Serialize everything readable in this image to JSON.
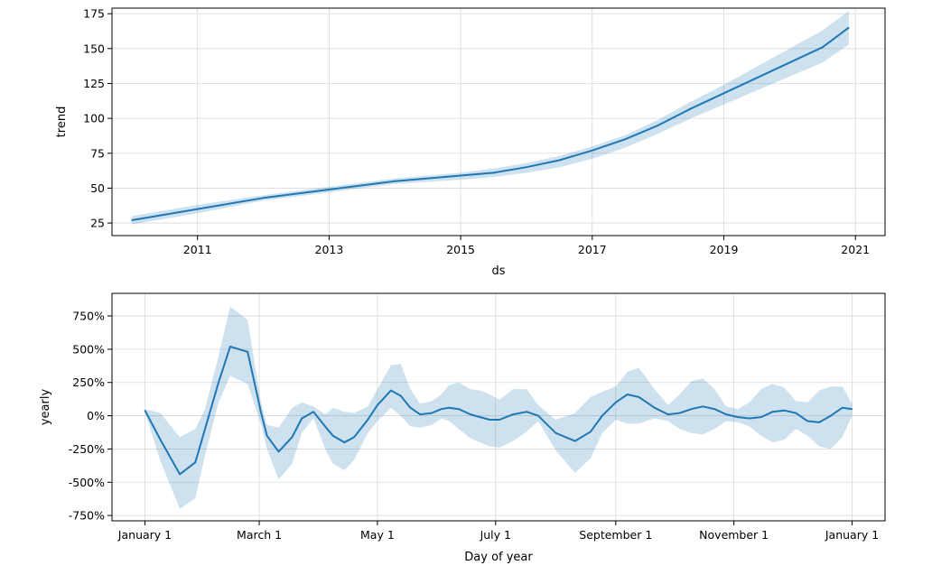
{
  "colors": {
    "line": "#1f77b4",
    "band": "#1f77b4",
    "grid": "#d9d9d9"
  },
  "chart_data": [
    {
      "type": "line",
      "xlabel": "ds",
      "ylabel": "trend",
      "x_ticks": [
        2011,
        2013,
        2015,
        2017,
        2019,
        2021
      ],
      "x_tick_labels": [
        "2011",
        "2013",
        "2015",
        "2017",
        "2019",
        "2021"
      ],
      "y_ticks": [
        25,
        50,
        75,
        100,
        125,
        150,
        175
      ],
      "y_tick_labels": [
        "25",
        "50",
        "75",
        "100",
        "125",
        "150",
        "175"
      ],
      "xlim": [
        2009.7,
        2021.45
      ],
      "ylim": [
        16,
        179
      ],
      "grid": true,
      "series": [
        {
          "x": [
            2010.0,
            2011.0,
            2012.0,
            2013.0,
            2014.0,
            2015.0,
            2015.5,
            2016.0,
            2016.5,
            2017.0,
            2017.5,
            2018.0,
            2018.5,
            2019.0,
            2019.5,
            2020.0,
            2020.5,
            2020.9
          ],
          "y": [
            27,
            35,
            43,
            49,
            55,
            59,
            61,
            65,
            70,
            77,
            85,
            95,
            107,
            118,
            129,
            140,
            151,
            165
          ],
          "lower": [
            24,
            32,
            41,
            47,
            53,
            56,
            58,
            61,
            65,
            71,
            79,
            89,
            100,
            110,
            120,
            130,
            140,
            153
          ],
          "upper": [
            30,
            38,
            45,
            51,
            57,
            61,
            64,
            68,
            73,
            80,
            88,
            99,
            112,
            124,
            137,
            150,
            163,
            177
          ]
        }
      ]
    },
    {
      "type": "line",
      "xlabel": "Day of year",
      "ylabel": "yearly",
      "x_ticks": [
        0,
        59,
        120,
        181,
        243,
        304,
        365
      ],
      "x_tick_labels": [
        "January 1",
        "March 1",
        "May 1",
        "July 1",
        "September 1",
        "November 1",
        "January 1"
      ],
      "y_ticks": [
        -750,
        -500,
        -250,
        0,
        250,
        500,
        750
      ],
      "y_tick_labels": [
        "-750%",
        "-500%",
        "-250%",
        "0%",
        "250%",
        "500%",
        "750%"
      ],
      "xlim": [
        -17,
        382
      ],
      "ylim": [
        -790,
        920
      ],
      "grid": true,
      "series": [
        {
          "x": [
            0,
            8,
            18,
            26,
            31,
            38,
            44,
            53,
            60,
            63,
            69,
            76,
            81,
            87,
            93,
            97,
            103,
            108,
            115,
            120,
            127,
            132,
            137,
            142,
            148,
            153,
            157,
            162,
            168,
            173,
            178,
            183,
            190,
            197,
            203,
            212,
            222,
            230,
            236,
            243,
            249,
            255,
            263,
            270,
            276,
            282,
            288,
            294,
            300,
            306,
            312,
            318,
            324,
            330,
            336,
            342,
            348,
            354,
            360,
            365
          ],
          "y": [
            40,
            -180,
            -440,
            -350,
            -100,
            250,
            520,
            480,
            20,
            -150,
            -270,
            -160,
            -20,
            30,
            -80,
            -150,
            -200,
            -160,
            -30,
            80,
            190,
            150,
            60,
            10,
            20,
            50,
            60,
            50,
            10,
            -10,
            -30,
            -30,
            10,
            30,
            0,
            -130,
            -190,
            -120,
            0,
            100,
            160,
            140,
            60,
            10,
            20,
            50,
            70,
            50,
            10,
            -10,
            -20,
            -10,
            30,
            40,
            20,
            -40,
            -50,
            0,
            60,
            50
          ],
          "lower": [
            30,
            -340,
            -700,
            -620,
            -300,
            100,
            300,
            240,
            -70,
            -250,
            -480,
            -360,
            -130,
            -20,
            -250,
            -360,
            -410,
            -330,
            -130,
            -40,
            60,
            0,
            -80,
            -90,
            -70,
            -20,
            -40,
            -100,
            -170,
            -200,
            -230,
            -240,
            -190,
            -120,
            -40,
            -260,
            -430,
            -320,
            -130,
            -30,
            -60,
            -60,
            -20,
            -40,
            -100,
            -130,
            -140,
            -100,
            -40,
            -50,
            -80,
            -150,
            -200,
            -180,
            -100,
            -150,
            -230,
            -250,
            -160,
            0
          ],
          "upper": [
            50,
            20,
            -160,
            -100,
            50,
            450,
            820,
            720,
            90,
            -70,
            -90,
            60,
            100,
            70,
            10,
            60,
            30,
            20,
            70,
            200,
            380,
            390,
            200,
            90,
            110,
            160,
            230,
            250,
            200,
            190,
            160,
            120,
            200,
            200,
            80,
            -30,
            20,
            140,
            180,
            220,
            330,
            360,
            200,
            80,
            160,
            260,
            280,
            200,
            70,
            50,
            100,
            200,
            240,
            210,
            110,
            100,
            190,
            220,
            220,
            90
          ]
        }
      ]
    }
  ]
}
